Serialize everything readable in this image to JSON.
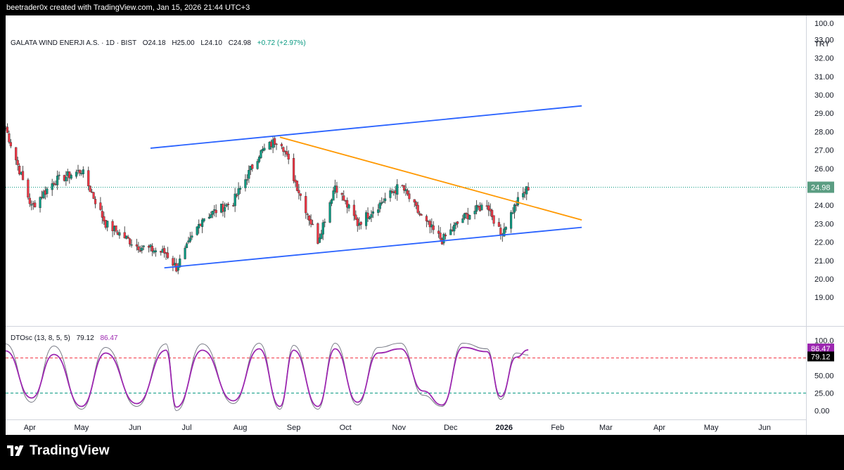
{
  "header": {
    "attribution": "beetrader0x created with TradingView.com, Jan 15, 2026 21:44 UTC+3"
  },
  "footer": {
    "brand": "TradingView"
  },
  "legend": {
    "symbol": "GALATA WIND ENERJI A.S. · 1D · BIST",
    "open": "O24.18",
    "high": "H25.00",
    "low": "L24.10",
    "close": "C24.98",
    "change": "+0.72 (+2.97%)"
  },
  "indicator": {
    "name": "DTOsc (13, 8, 5, 5)",
    "k_value": "79.12",
    "d_value": "86.47",
    "upper_level": 75,
    "lower_level": 25
  },
  "price_axis": {
    "currency": "TRY",
    "last_price": "24.98",
    "labels": [
      "100.0",
      "33.00",
      "32.00",
      "31.00",
      "30.00",
      "29.00",
      "28.00",
      "27.00",
      "26.00",
      "25.00",
      "24.00",
      "23.00",
      "22.00",
      "21.00",
      "20.00",
      "19.00"
    ]
  },
  "osc_axis": {
    "labels": [
      "100.0",
      "50.00",
      "25.00",
      "0.00"
    ]
  },
  "time_axis": [
    "Apr",
    "May",
    "Jun",
    "Jul",
    "Aug",
    "Sep",
    "Oct",
    "Nov",
    "Dec",
    "2026",
    "Feb",
    "Mar",
    "Apr",
    "May",
    "Jun"
  ],
  "colors": {
    "up": "#089981",
    "down": "#f23645",
    "wick": "#4a4a4a",
    "channel": "#2962ff",
    "trendline": "#ff9800",
    "k_line": "#787b86",
    "d_line": "#9c27b0",
    "upper_level": "#f23645",
    "lower_level": "#089981",
    "last_price_bg": "#5b9d82"
  },
  "chart_data": {
    "type": "line",
    "series": [
      {
        "name": "Close",
        "x": [
          "2025-03-18",
          "2025-04-02",
          "2025-04-15",
          "2025-05-01",
          "2025-05-15",
          "2025-06-02",
          "2025-06-19",
          "2025-06-25",
          "2025-07-10",
          "2025-07-28",
          "2025-08-12",
          "2025-08-24",
          "2025-09-01",
          "2025-09-15",
          "2025-09-25",
          "2025-10-08",
          "2025-10-20",
          "2025-11-02",
          "2025-11-15",
          "2025-11-26",
          "2025-12-08",
          "2025-12-22",
          "2025-12-30",
          "2026-01-08",
          "2026-01-15"
        ],
        "values": [
          28.2,
          23.9,
          25.3,
          25.9,
          23.0,
          21.8,
          21.4,
          20.6,
          23.3,
          24.2,
          26.8,
          27.7,
          25.5,
          22.1,
          25.1,
          23.0,
          24.0,
          25.1,
          23.2,
          22.1,
          23.3,
          24.1,
          22.4,
          24.1,
          24.98
        ]
      },
      {
        "name": "DTOsc K",
        "values": [
          95,
          12,
          92,
          2,
          90,
          6,
          95,
          0,
          95,
          10,
          96,
          2,
          93,
          2,
          96,
          8,
          90,
          96,
          22,
          6,
          96,
          88,
          16,
          82,
          79.12
        ]
      },
      {
        "name": "DTOsc D",
        "values": [
          85,
          18,
          80,
          6,
          82,
          10,
          86,
          5,
          86,
          14,
          88,
          6,
          86,
          6,
          88,
          12,
          82,
          88,
          28,
          8,
          90,
          84,
          20,
          76,
          86.47
        ]
      }
    ],
    "annotations": [
      {
        "type": "channel-upper",
        "from": [
          "2025-06-10",
          27.1
        ],
        "to": [
          "2026-02-15",
          29.4
        ]
      },
      {
        "type": "channel-lower",
        "from": [
          "2025-06-18",
          20.6
        ],
        "to": [
          "2026-02-15",
          22.8
        ]
      },
      {
        "type": "trendline",
        "from": [
          "2025-08-24",
          27.7
        ],
        "to": [
          "2026-02-15",
          23.2
        ]
      }
    ],
    "x_range": [
      "2025-03-18",
      "2026-06-25"
    ],
    "ylim": [
      18.5,
      34.5
    ],
    "osc_ylim": [
      -10,
      110
    ]
  }
}
